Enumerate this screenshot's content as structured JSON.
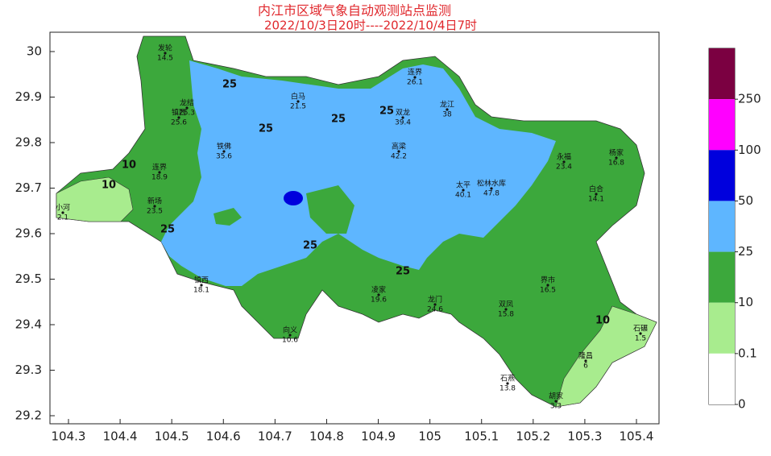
{
  "header": {
    "title": "内江市区域气象自动观测站点监测",
    "subtitle": "2022/10/3日20时----2022/10/4日7时"
  },
  "map": {
    "xticks": [
      104.3,
      104.4,
      104.5,
      104.6,
      104.7,
      104.8,
      104.9,
      105,
      105.1,
      105.2,
      105.3,
      105.4
    ],
    "yticks": [
      30,
      29.9,
      29.8,
      29.7,
      29.6,
      29.5,
      29.4,
      29.3,
      29.2
    ],
    "contour_labels": [
      "25",
      "25",
      "25",
      "25",
      "25",
      "10",
      "10",
      "25",
      "25",
      "10"
    ],
    "stations": [
      {
        "name": "发轮",
        "value": "14.5"
      },
      {
        "name": "龙结",
        "value": "25.3"
      },
      {
        "name": "镇西",
        "value": "25.6"
      },
      {
        "name": "白马",
        "value": "21.5"
      },
      {
        "name": "双龙",
        "value": "39.4"
      },
      {
        "name": "龙江",
        "value": "38"
      },
      {
        "name": "连界",
        "value": "26.1"
      },
      {
        "name": "铁佛",
        "value": "35.6"
      },
      {
        "name": "高梁",
        "value": "42.2"
      },
      {
        "name": "太平",
        "value": "40.1"
      },
      {
        "name": "松林水库",
        "value": "47.8"
      },
      {
        "name": "永福",
        "value": "23.4"
      },
      {
        "name": "杨家",
        "value": "16.8"
      },
      {
        "name": "连界",
        "value": "18.9"
      },
      {
        "name": "新场",
        "value": "23.5"
      },
      {
        "name": "小河",
        "value": "2.1"
      },
      {
        "name": "镇西",
        "value": "18.1"
      },
      {
        "name": "凌家",
        "value": "19.6"
      },
      {
        "name": "龙门",
        "value": "24.6"
      },
      {
        "name": "双凤",
        "value": "15.8"
      },
      {
        "name": "界市",
        "value": "16.5"
      },
      {
        "name": "石碾",
        "value": "1.5"
      },
      {
        "name": "隆昌",
        "value": "6"
      },
      {
        "name": "胡家",
        "value": "3.3"
      },
      {
        "name": "向义",
        "value": "10.6"
      },
      {
        "name": "白合",
        "value": "14.1"
      },
      {
        "name": "石燕",
        "value": "13.8"
      }
    ]
  },
  "legend": {
    "levels": [
      250,
      100,
      50,
      25,
      10,
      0.1,
      0
    ],
    "colors": [
      "#7b0041",
      "#ff00ff",
      "#0000dd",
      "#5eb6ff",
      "#3ca83c",
      "#a8ec8e",
      "#ffffff"
    ]
  }
}
